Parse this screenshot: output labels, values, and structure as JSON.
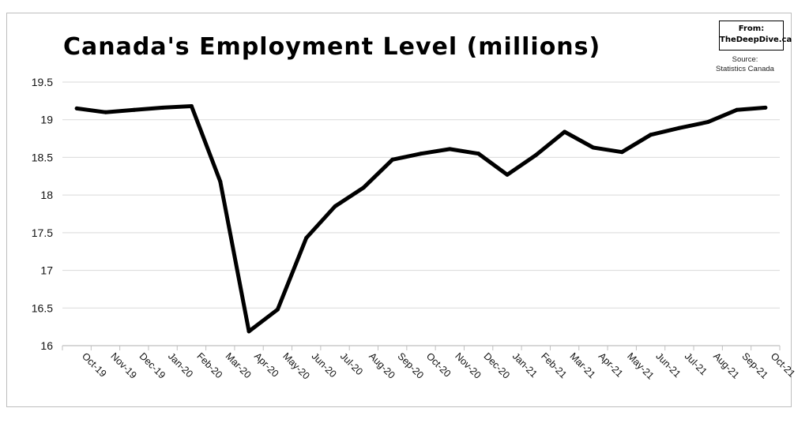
{
  "header": {
    "title": "Canada's Employment Level (millions)"
  },
  "logo": {
    "line1": "From:",
    "line2": "TheDeepDive.ca"
  },
  "source": {
    "line1": "Source:",
    "line2": "Statistics Canada"
  },
  "colors": {
    "line": "#000000",
    "grid": "#d9d9d9",
    "axis": "#bfbfbf"
  },
  "chart_data": {
    "type": "line",
    "title": "Canada's Employment Level (millions)",
    "xlabel": "",
    "ylabel": "",
    "ylim": [
      16,
      19.5
    ],
    "yticks": [
      "16",
      "16.5",
      "17",
      "17.5",
      "18",
      "18.5",
      "19",
      "19.5"
    ],
    "ytick_values": [
      16,
      16.5,
      17,
      17.5,
      18,
      18.5,
      19,
      19.5
    ],
    "grid": "horizontal",
    "legend": "none",
    "categories": [
      "Oct-19",
      "Nov-19",
      "Dec-19",
      "Jan-20",
      "Feb-20",
      "Mar-20",
      "Apr-20",
      "May-20",
      "Jun-20",
      "Jul-20",
      "Aug-20",
      "Sep-20",
      "Oct-20",
      "Nov-20",
      "Dec-20",
      "Jan-21",
      "Feb-21",
      "Mar-21",
      "Apr-21",
      "May-21",
      "Jun-21",
      "Jul-21",
      "Aug-21",
      "Sep-21",
      "Oct-21"
    ],
    "series": [
      {
        "values": [
          19.15,
          19.1,
          19.13,
          19.16,
          19.18,
          18.18,
          16.19,
          16.48,
          17.43,
          17.85,
          18.1,
          18.47,
          18.55,
          18.61,
          18.55,
          18.27,
          18.53,
          18.84,
          18.63,
          18.57,
          18.8,
          18.89,
          18.97,
          19.13,
          19.16
        ]
      }
    ]
  }
}
